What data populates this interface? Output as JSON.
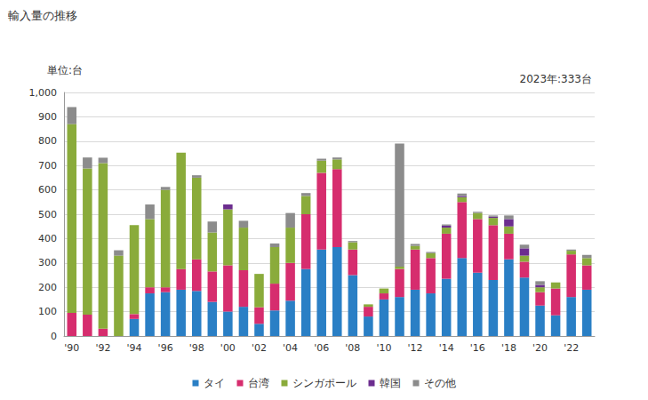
{
  "chart_data": {
    "type": "bar",
    "title": "輸入量の推移",
    "ylabel": "単位:台",
    "annotation": "2023年:333台",
    "categories": [
      "'90",
      null,
      "'92",
      null,
      "'94",
      null,
      "'96",
      null,
      "'98",
      null,
      "'00",
      null,
      "'02",
      null,
      "'04",
      null,
      "'06",
      null,
      "'08",
      null,
      "'10",
      null,
      "'12",
      null,
      "'14",
      null,
      "'16",
      null,
      "'18",
      null,
      "'20",
      null,
      "'22",
      null
    ],
    "series": [
      {
        "name": "タイ",
        "color": "#2a7fc5",
        "values": [
          0,
          0,
          0,
          0,
          70,
          175,
          180,
          190,
          185,
          140,
          100,
          120,
          50,
          105,
          145,
          275,
          355,
          365,
          250,
          80,
          150,
          160,
          190,
          175,
          235,
          320,
          260,
          230,
          315,
          240,
          125,
          85,
          160,
          190
        ]
      },
      {
        "name": "台湾",
        "color": "#d62d6e",
        "values": [
          95,
          88,
          30,
          0,
          20,
          25,
          20,
          85,
          130,
          125,
          190,
          150,
          68,
          110,
          155,
          225,
          315,
          320,
          105,
          40,
          25,
          115,
          165,
          145,
          185,
          230,
          220,
          225,
          105,
          65,
          55,
          110,
          175,
          100
        ]
      },
      {
        "name": "シンガポール",
        "color": "#8aab3b",
        "values": [
          775,
          600,
          680,
          330,
          365,
          280,
          400,
          478,
          335,
          160,
          230,
          175,
          137,
          150,
          145,
          75,
          50,
          40,
          30,
          10,
          20,
          10,
          15,
          20,
          25,
          20,
          25,
          30,
          30,
          25,
          20,
          25,
          15,
          30
        ]
      },
      {
        "name": "韓国",
        "color": "#6c2d8f",
        "values": [
          0,
          0,
          0,
          0,
          0,
          0,
          0,
          0,
          0,
          0,
          20,
          0,
          0,
          0,
          0,
          0,
          0,
          0,
          0,
          0,
          0,
          0,
          0,
          0,
          8,
          5,
          0,
          5,
          30,
          30,
          10,
          0,
          0,
          0
        ]
      },
      {
        "name": "その他",
        "color": "#8c8c8c",
        "values": [
          70,
          45,
          22,
          22,
          0,
          60,
          12,
          0,
          10,
          45,
          0,
          28,
          0,
          15,
          60,
          12,
          8,
          8,
          5,
          0,
          0,
          505,
          8,
          5,
          5,
          10,
          5,
          5,
          15,
          15,
          15,
          0,
          5,
          13
        ]
      }
    ],
    "stacked": true,
    "ylim": [
      0,
      1000
    ],
    "yticks": [
      0,
      100,
      200,
      300,
      400,
      500,
      600,
      700,
      800,
      900,
      {
        "value": 1000,
        "label": "1,000"
      }
    ],
    "grid": true,
    "legend": "bottom"
  }
}
